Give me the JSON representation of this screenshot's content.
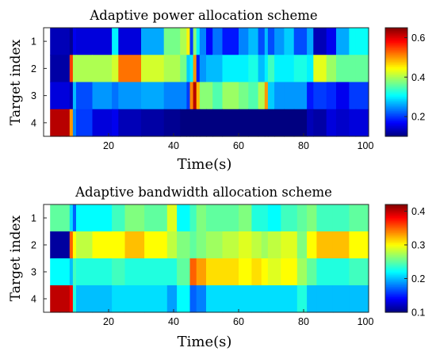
{
  "chart_data": [
    {
      "type": "heatmap",
      "title": "Adaptive power allocation scheme",
      "xlabel": "Time(s)",
      "ylabel": "Target index",
      "x_ticks": [
        20,
        40,
        60,
        80,
        100
      ],
      "y_categories": [
        "1",
        "2",
        "3",
        "4"
      ],
      "colorbar_ticks": [
        0.2,
        0.4,
        0.6
      ],
      "colorbar_range": [
        0.1,
        0.65
      ],
      "colormap": "jet",
      "xlim": [
        0,
        100
      ],
      "segments": [
        [
          2,
          5,
          7,
          8,
          9,
          10,
          15,
          21,
          23,
          30,
          37,
          42,
          44,
          45,
          46,
          47,
          48,
          50,
          52,
          55,
          60,
          63,
          66,
          68,
          69,
          71,
          74,
          77,
          81,
          83,
          87,
          90,
          94,
          96,
          100
        ],
        [
          2,
          5,
          7,
          8,
          9,
          10,
          15,
          21,
          23,
          30,
          37,
          42,
          44,
          45,
          46,
          47,
          48,
          50,
          52,
          55,
          60,
          63,
          66,
          68,
          69,
          71,
          74,
          77,
          81,
          83,
          87,
          90,
          94,
          96,
          100
        ],
        [
          2,
          5,
          7,
          8,
          9,
          10,
          15,
          21,
          23,
          30,
          37,
          42,
          44,
          45,
          46,
          47,
          48,
          50,
          52,
          55,
          60,
          63,
          66,
          68,
          69,
          71,
          74,
          77,
          81,
          83,
          87,
          90,
          94,
          96,
          100
        ],
        [
          2,
          5,
          7,
          8,
          9,
          10,
          15,
          21,
          23,
          30,
          37,
          42,
          44,
          45,
          46,
          47,
          48,
          50,
          52,
          55,
          60,
          63,
          66,
          68,
          69,
          71,
          74,
          77,
          81,
          83,
          87,
          90,
          94,
          96,
          100
        ]
      ],
      "values": [
        [
          0.13,
          0.13,
          0.13,
          0.11,
          0.16,
          0.15,
          0.15,
          0.3,
          0.15,
          0.26,
          0.37,
          0.4,
          0.45,
          0.2,
          0.38,
          0.3,
          0.24,
          0.17,
          0.23,
          0.18,
          0.24,
          0.27,
          0.21,
          0.27,
          0.21,
          0.25,
          0.28,
          0.21,
          0.26,
          0.13,
          0.16,
          0.26,
          0.31,
          0.31
        ],
        [
          0.12,
          0.12,
          0.12,
          0.55,
          0.4,
          0.4,
          0.4,
          0.42,
          0.52,
          0.42,
          0.4,
          0.37,
          0.28,
          0.3,
          0.5,
          0.18,
          0.25,
          0.27,
          0.27,
          0.3,
          0.3,
          0.32,
          0.27,
          0.3,
          0.34,
          0.3,
          0.3,
          0.32,
          0.3,
          0.43,
          0.39,
          0.36,
          0.36,
          0.36
        ],
        [
          0.15,
          0.15,
          0.15,
          0.13,
          0.27,
          0.21,
          0.25,
          0.23,
          0.25,
          0.26,
          0.24,
          0.24,
          0.2,
          0.51,
          0.62,
          0.48,
          0.38,
          0.38,
          0.35,
          0.39,
          0.37,
          0.35,
          0.4,
          0.5,
          0.28,
          0.25,
          0.25,
          0.25,
          0.18,
          0.2,
          0.19,
          0.16,
          0.2,
          0.2
        ],
        [
          0.62,
          0.62,
          0.62,
          0.5,
          0.24,
          0.2,
          0.15,
          0.16,
          0.13,
          0.12,
          0.11,
          0.1,
          0.1,
          0.1,
          0.1,
          0.1,
          0.1,
          0.1,
          0.1,
          0.1,
          0.1,
          0.1,
          0.1,
          0.1,
          0.1,
          0.1,
          0.1,
          0.1,
          0.13,
          0.12,
          0.15,
          0.14,
          0.15,
          0.15
        ]
      ]
    },
    {
      "type": "heatmap",
      "title": "Adaptive bandwidth allocation scheme",
      "xlabel": "Time(s)",
      "ylabel": "Target index",
      "x_ticks": [
        20,
        40,
        60,
        80,
        100
      ],
      "y_categories": [
        "1",
        "2",
        "3",
        "4"
      ],
      "colorbar_ticks": [
        0.1,
        0.2,
        0.3,
        0.4
      ],
      "colorbar_range": [
        0.1,
        0.42
      ],
      "colormap": "jet",
      "xlim": [
        0,
        100
      ],
      "segments": [
        [
          2,
          5,
          7,
          8,
          9,
          10,
          15,
          21,
          25,
          31,
          38,
          41,
          45,
          47,
          50,
          55,
          60,
          64,
          67,
          69,
          73,
          78,
          81,
          84,
          89,
          94,
          97,
          100
        ],
        [
          2,
          5,
          7,
          8,
          9,
          10,
          15,
          21,
          25,
          31,
          38,
          41,
          45,
          47,
          50,
          55,
          60,
          64,
          67,
          69,
          73,
          78,
          81,
          84,
          89,
          94,
          97,
          100
        ],
        [
          2,
          5,
          7,
          8,
          9,
          10,
          15,
          21,
          25,
          31,
          38,
          41,
          45,
          47,
          50,
          55,
          60,
          64,
          67,
          69,
          73,
          78,
          81,
          84,
          89,
          94,
          97,
          100
        ],
        [
          2,
          5,
          7,
          8,
          9,
          10,
          15,
          21,
          25,
          31,
          38,
          41,
          45,
          47,
          50,
          55,
          60,
          64,
          67,
          69,
          73,
          78,
          81,
          84,
          89,
          94,
          97,
          100
        ]
      ],
      "values": [
        [
          0.25,
          0.25,
          0.25,
          0.21,
          0.17,
          0.22,
          0.22,
          0.24,
          0.26,
          0.25,
          0.29,
          0.22,
          0.24,
          0.26,
          0.25,
          0.25,
          0.26,
          0.23,
          0.23,
          0.22,
          0.24,
          0.25,
          0.26,
          0.24,
          0.24,
          0.25,
          0.25
        ],
        [
          0.11,
          0.11,
          0.11,
          0.35,
          0.3,
          0.28,
          0.3,
          0.3,
          0.32,
          0.3,
          0.28,
          0.26,
          0.25,
          0.26,
          0.27,
          0.28,
          0.29,
          0.28,
          0.27,
          0.28,
          0.29,
          0.26,
          0.3,
          0.32,
          0.32,
          0.3,
          0.3
        ],
        [
          0.22,
          0.22,
          0.22,
          0.2,
          0.24,
          0.23,
          0.23,
          0.24,
          0.23,
          0.23,
          0.23,
          0.25,
          0.35,
          0.33,
          0.31,
          0.31,
          0.3,
          0.31,
          0.3,
          0.29,
          0.3,
          0.27,
          0.25,
          0.23,
          0.23,
          0.24,
          0.24
        ],
        [
          0.4,
          0.4,
          0.4,
          0.38,
          0.23,
          0.2,
          0.2,
          0.21,
          0.21,
          0.21,
          0.19,
          0.22,
          0.17,
          0.18,
          0.21,
          0.21,
          0.21,
          0.21,
          0.21,
          0.21,
          0.21,
          0.23,
          0.2,
          0.2,
          0.2,
          0.2,
          0.2
        ]
      ]
    }
  ]
}
